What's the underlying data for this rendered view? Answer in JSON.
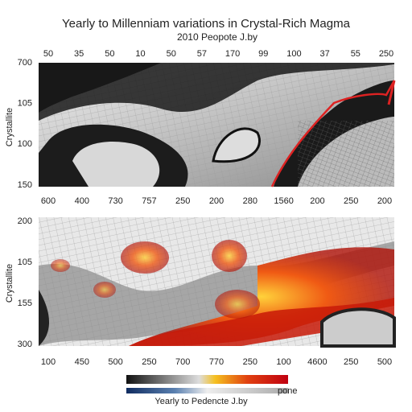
{
  "header": {
    "title": "Yearly to Millenniam variations in Crystal-Rich Magma",
    "subtitle": "2010 Peopote J.by"
  },
  "panels": [
    {
      "y_label": "Crystallite",
      "top_labels": [
        "50",
        "35",
        "50",
        "10",
        "50",
        "57",
        "170",
        "99",
        "100",
        "37",
        "55",
        "250"
      ],
      "left_labels": [
        "700",
        "105",
        "100",
        "150"
      ],
      "bottom_labels": [
        "600",
        "400",
        "730",
        "757",
        "250",
        "200",
        "280",
        "1560",
        "200",
        "250",
        "200"
      ]
    },
    {
      "y_label": "Crystallite",
      "left_labels": [
        "200",
        "105",
        "155",
        "300"
      ],
      "bottom_labels": [
        "100",
        "450",
        "500",
        "250",
        "700",
        "770",
        "250",
        "100",
        "4600",
        "250",
        "500"
      ]
    }
  ],
  "colorbar": {
    "label": "Yearly to Pedencte J.by",
    "side_label": "pone"
  }
}
